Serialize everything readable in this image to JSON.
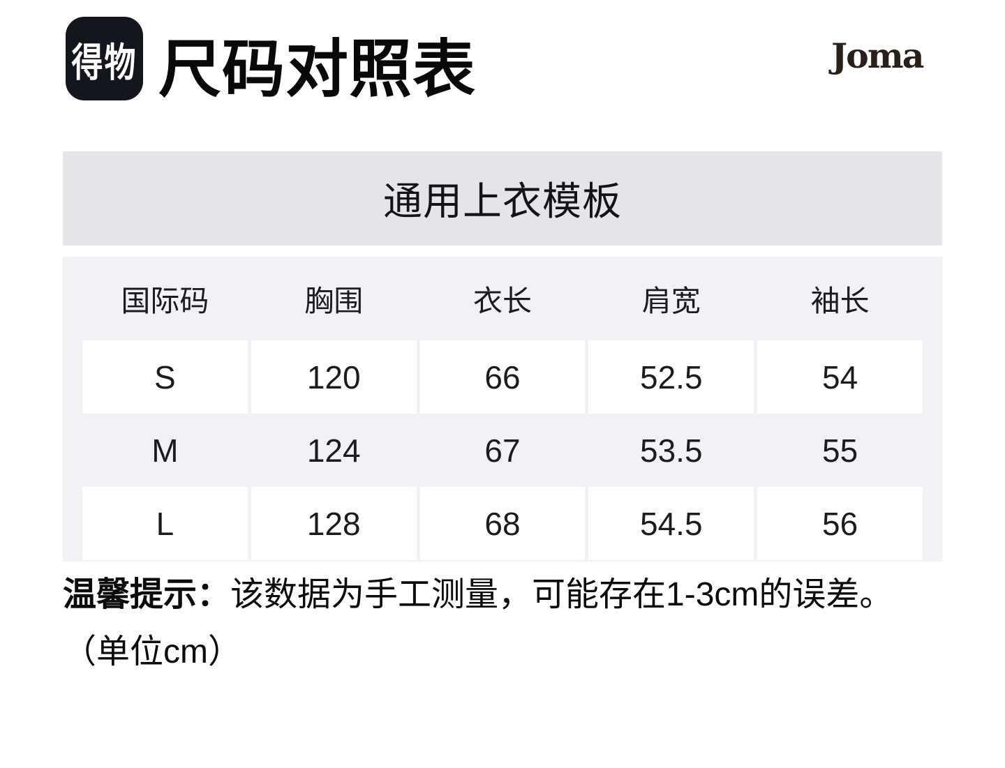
{
  "header": {
    "logo_text": "得物",
    "title": "尺码对照表",
    "brand": "Joma"
  },
  "banner": {
    "title": "通用上衣模板"
  },
  "size_table": {
    "columns": [
      "国际码",
      "胸围",
      "衣长",
      "肩宽",
      "袖长"
    ],
    "rows": [
      {
        "size": "S",
        "values": [
          "120",
          "66",
          "52.5",
          "54"
        ]
      },
      {
        "size": "M",
        "values": [
          "124",
          "67",
          "53.5",
          "55"
        ]
      },
      {
        "size": "L",
        "values": [
          "128",
          "68",
          "54.5",
          "56"
        ]
      }
    ]
  },
  "note": {
    "label": "温馨提示：",
    "text": "该数据为手工测量，可能存在1-3cm的误差。",
    "unit": "（单位cm）"
  },
  "colors": {
    "logo_bg": "#14161d",
    "logo_text": "#ffffff",
    "banner_bg": "#e5e4e9",
    "table_bg": "#f2f2f6",
    "cell_bg": "#ffffff",
    "title_text": "#09090b",
    "joma_text": "#2a201b"
  }
}
